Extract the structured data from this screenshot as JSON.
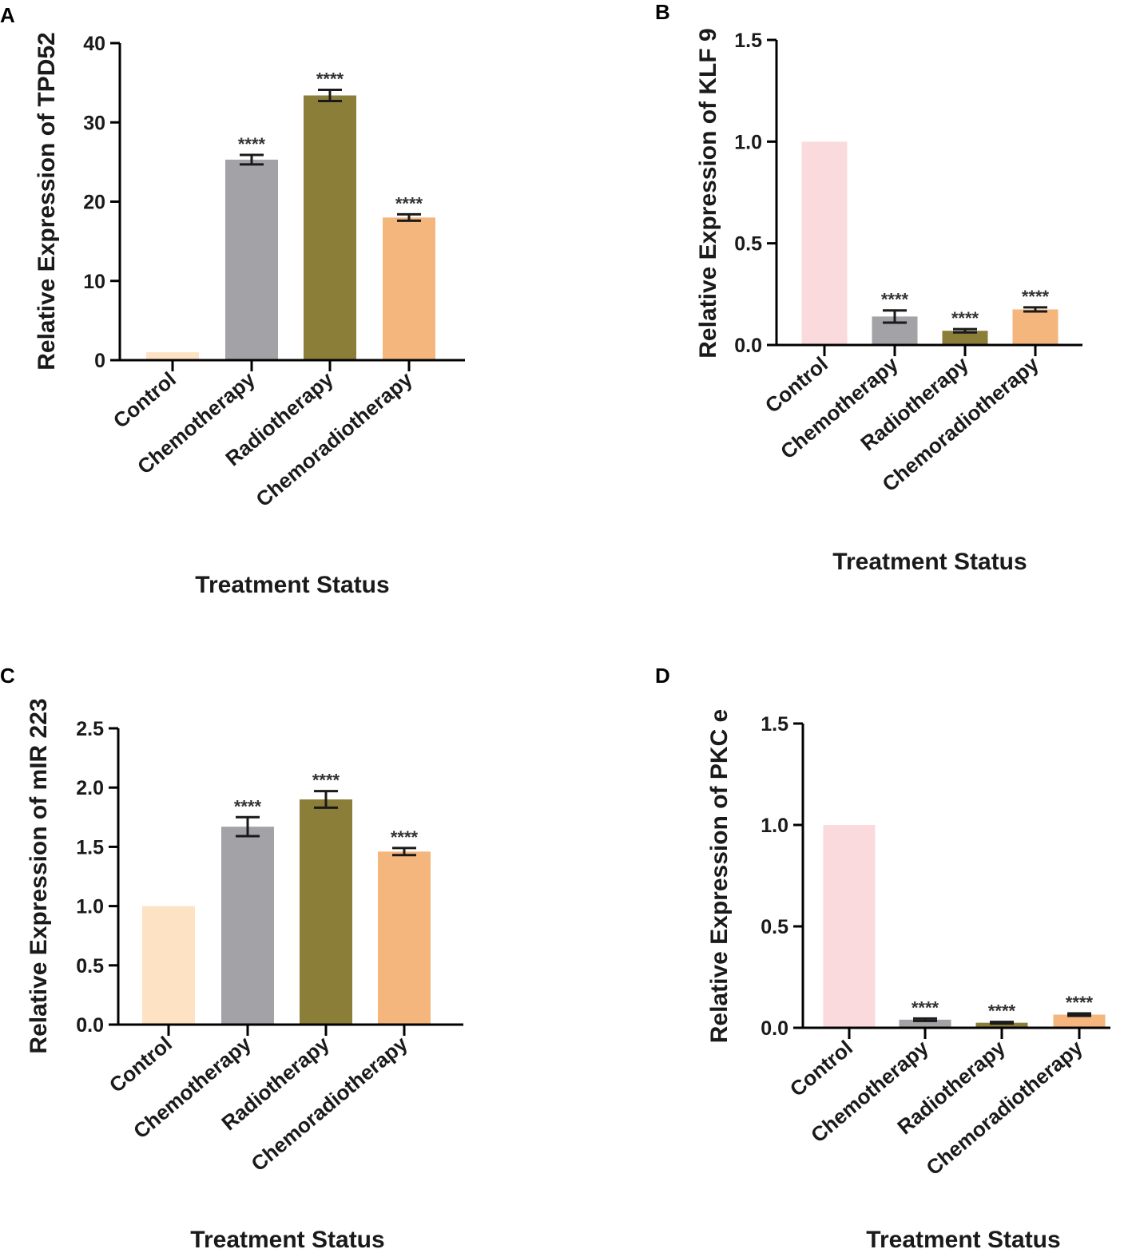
{
  "figure": {
    "colors": {
      "control_light": "#fde3c4",
      "control_pink": "#fadadd",
      "chemotherapy": "#a2a2a7",
      "radiotherapy": "#8b7e39",
      "chemoradiotherapy": "#f4b67c"
    }
  },
  "chart_data": [
    {
      "panel": "A",
      "type": "bar",
      "categories": [
        "Control",
        "Chemotherapy",
        "Radiotherapy",
        "Chemoradiotherapy"
      ],
      "values": [
        1.0,
        25.3,
        33.4,
        18.0
      ],
      "errors": [
        0,
        0.6,
        0.7,
        0.4
      ],
      "significance": [
        "",
        "****",
        "****",
        "****"
      ],
      "colors": [
        "#fde3c4",
        "#a2a2a7",
        "#8b7e39",
        "#f4b67c"
      ],
      "xlabel": "Treatment Status",
      "ylabel": "Relative Expression of TPD52",
      "ylim": [
        0,
        40
      ],
      "yticks": [
        0,
        10,
        20,
        30,
        40
      ],
      "ytick_labels": [
        "0",
        "10",
        "20",
        "30",
        "40"
      ]
    },
    {
      "panel": "B",
      "type": "bar",
      "categories": [
        "Control",
        "Chemotherapy",
        "Radiotherapy",
        "Chemoradiotherapy"
      ],
      "values": [
        1.0,
        0.14,
        0.07,
        0.175
      ],
      "errors": [
        0,
        0.03,
        0.008,
        0.01
      ],
      "significance": [
        "",
        "****",
        "****",
        "****"
      ],
      "colors": [
        "#fadadd",
        "#a2a2a7",
        "#8b7e39",
        "#f4b67c"
      ],
      "xlabel": "Treatment Status",
      "ylabel": "Relative Expression of KLF 9",
      "ylim": [
        0,
        1.5
      ],
      "yticks": [
        0,
        0.5,
        1.0,
        1.5
      ],
      "ytick_labels": [
        "0.0",
        "0.5",
        "1.0",
        "1.5"
      ]
    },
    {
      "panel": "C",
      "type": "bar",
      "categories": [
        "Control",
        "Chemotherapy",
        "Radiotherapy",
        "Chemoradiotherapy"
      ],
      "values": [
        1.0,
        1.67,
        1.9,
        1.46
      ],
      "errors": [
        0,
        0.08,
        0.07,
        0.03
      ],
      "significance": [
        "",
        "****",
        "****",
        "****"
      ],
      "colors": [
        "#fde3c4",
        "#a2a2a7",
        "#8b7e39",
        "#f4b67c"
      ],
      "xlabel": "Treatment Status",
      "ylabel": "Relative Expression of mIR 223",
      "ylim": [
        0,
        2.5
      ],
      "yticks": [
        0,
        0.5,
        1.0,
        1.5,
        2.0,
        2.5
      ],
      "ytick_labels": [
        "0.0",
        "0.5",
        "1.0",
        "1.5",
        "2.0",
        "2.5"
      ]
    },
    {
      "panel": "D",
      "type": "bar",
      "categories": [
        "Control",
        "Chemotherapy",
        "Radiotherapy",
        "Chemoradiotherapy"
      ],
      "values": [
        1.0,
        0.04,
        0.025,
        0.065
      ],
      "errors": [
        0,
        0.006,
        0.004,
        0.006
      ],
      "significance": [
        "",
        "****",
        "****",
        "****"
      ],
      "colors": [
        "#fadadd",
        "#a2a2a7",
        "#8b7e39",
        "#f4b67c"
      ],
      "xlabel": "Treatment Status",
      "ylabel": "Relative Expression of PKC e",
      "ylim": [
        0,
        1.5
      ],
      "yticks": [
        0,
        0.5,
        1.0,
        1.5
      ],
      "ytick_labels": [
        "0.0",
        "0.5",
        "1.0",
        "1.5"
      ]
    }
  ]
}
